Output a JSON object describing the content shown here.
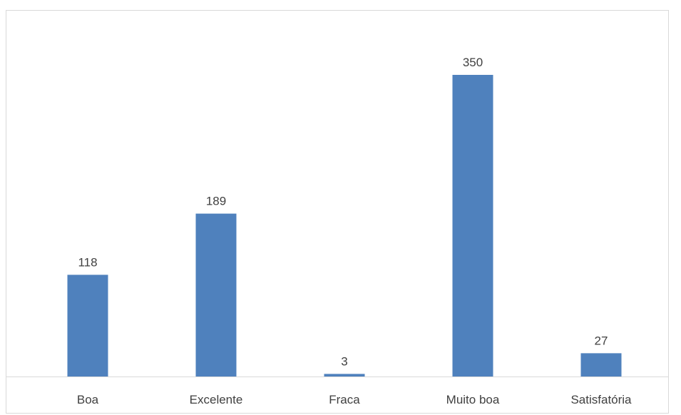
{
  "chart_data": {
    "type": "bar",
    "categories": [
      "Boa",
      "Excelente",
      "Fraca",
      "Muito boa",
      "Satisfatória"
    ],
    "values": [
      118,
      189,
      3,
      350,
      27
    ],
    "data_labels": [
      "118",
      "189",
      "3",
      "350",
      "27"
    ],
    "title": "",
    "xlabel": "",
    "ylabel": "",
    "ylim": [
      0,
      400
    ],
    "grid": false,
    "legend": "none",
    "bar_color": "#4f81bd",
    "axis_color": "#d9d9d9"
  }
}
